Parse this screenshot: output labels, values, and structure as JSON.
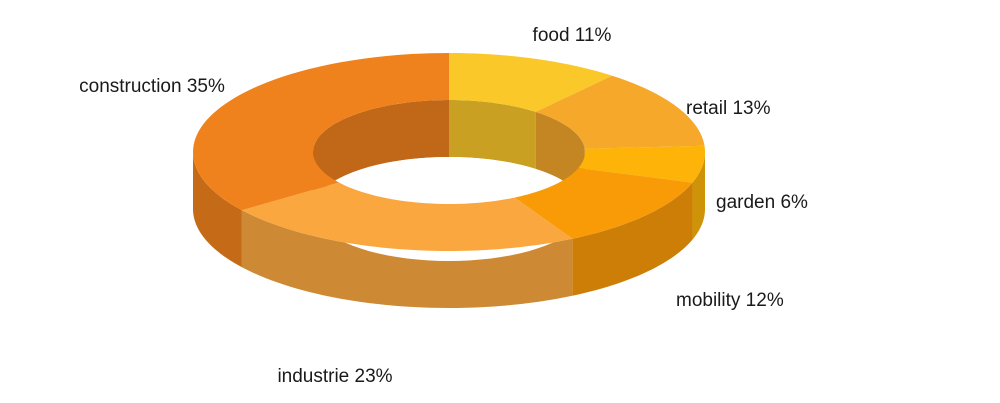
{
  "chart_data": {
    "type": "pie",
    "variant": "3d-donut",
    "title": "",
    "legend": "none",
    "slices": [
      {
        "name": "food",
        "value": 11,
        "label": "food 11%",
        "color": "#FBC82A"
      },
      {
        "name": "retail",
        "value": 13,
        "label": "retail 13%",
        "color": "#F5A82A"
      },
      {
        "name": "garden",
        "value": 6,
        "label": "garden 6%",
        "color": "#FDB308"
      },
      {
        "name": "mobility",
        "value": 12,
        "label": "mobility 12%",
        "color": "#F99A07"
      },
      {
        "name": "industrie",
        "value": 23,
        "label": "industrie 23%",
        "color": "#FAA740"
      },
      {
        "name": "construction",
        "value": 35,
        "label": "construction 35%",
        "color": "#F0821D"
      }
    ]
  }
}
